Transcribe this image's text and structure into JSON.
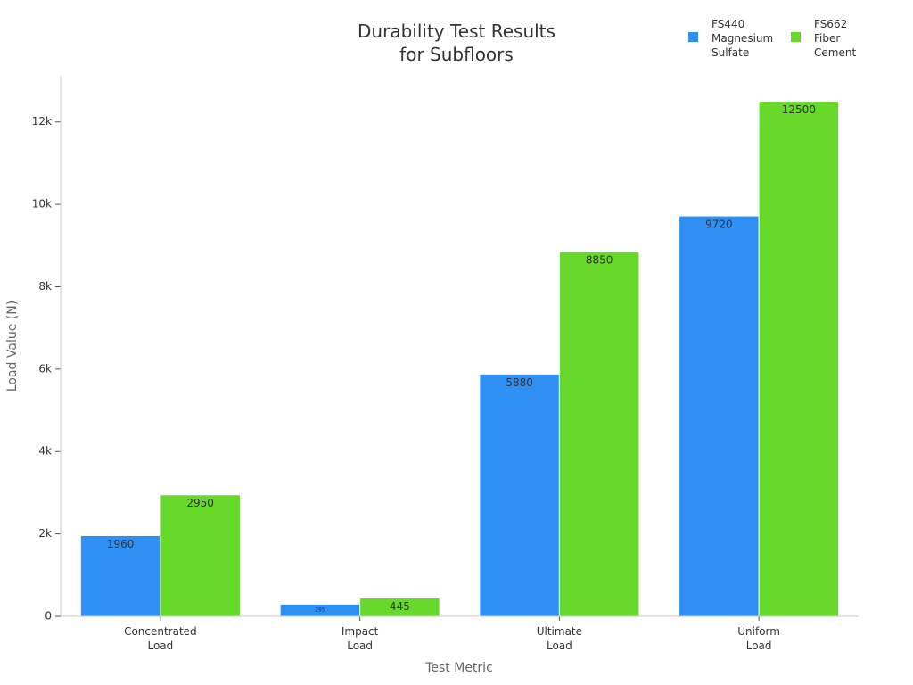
{
  "chart_data": {
    "type": "bar",
    "title": "Durability Test Results\nfor Subfloors",
    "x_label": "Test Metric",
    "y_label": "Load Value (N)",
    "categories": [
      "Concentrated\nLoad",
      "Impact\nLoad",
      "Ultimate\nLoad",
      "Uniform\nLoad"
    ],
    "series": [
      {
        "name": "FS440\nMagnesium\nSulfate",
        "color": "#2e8ff5",
        "values": [
          1960,
          295,
          5880,
          9720
        ]
      },
      {
        "name": "FS662\nFiber\nCement",
        "color": "#66d92a",
        "values": [
          2950,
          445,
          8850,
          12500
        ]
      }
    ],
    "ylim": [
      0,
      13120
    ],
    "yticks": [
      0,
      {
        "value": 2000,
        "label": "2k"
      },
      {
        "value": 4000,
        "label": "4k"
      },
      {
        "value": 6000,
        "label": "6k"
      },
      {
        "value": 8000,
        "label": "8k"
      },
      {
        "value": 10000,
        "label": "10k"
      },
      {
        "value": 12000,
        "label": "12k"
      }
    ],
    "legend": "top-right"
  }
}
